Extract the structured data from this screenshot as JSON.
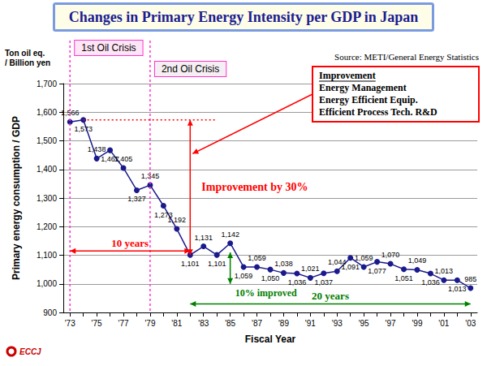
{
  "chart_data": {
    "type": "line",
    "title": "Changes in Primary Energy Intensity per GDP in Japan",
    "source": "Source: METI/General Energy Statistics",
    "x_label": "Fiscal Year",
    "y_label": "Primary energy consumption / GDP",
    "y_unit": [
      "Ton oil eq.",
      "/ Billion yen"
    ],
    "categories": [
      "'73",
      null,
      "'75",
      null,
      "'77",
      null,
      "'79",
      null,
      "'81",
      null,
      "'83",
      null,
      "'85",
      null,
      "'87",
      null,
      "'89",
      null,
      "'91",
      null,
      "'93",
      null,
      "'95",
      null,
      "'97",
      null,
      "'99",
      null,
      "'01",
      null,
      "'03"
    ],
    "values": [
      1566,
      1573,
      1438,
      1467,
      1405,
      1327,
      1345,
      1273,
      1192,
      1101,
      1131,
      1101,
      1142,
      1059,
      1059,
      1050,
      1038,
      1036,
      1021,
      1037,
      1044,
      1091,
      1059,
      1077,
      1070,
      1051,
      1049,
      1036,
      1013,
      1013,
      985
    ],
    "value_labels": [
      "1,566",
      "1,573",
      "1,438",
      "1,467",
      "1,405",
      "1,327",
      "1,345",
      "1,273",
      "1,192",
      "1,101",
      "1,131",
      "1,101",
      "1,142",
      "1,059",
      "1,059",
      "1,050",
      "1,038",
      "1,036",
      "1,021",
      "1,037",
      "1,044",
      "1,091",
      "1,059",
      "1,077",
      "1,070",
      "1,051",
      "1,049",
      "1,036",
      "1,013",
      "1,013",
      "985"
    ],
    "data_labels": true,
    "color": "#1a1a8c",
    "marker": "circle",
    "ylim": [
      900,
      1700
    ],
    "yticks": [
      900,
      {
        "value": 1000,
        "label": "1,000"
      },
      {
        "value": 1100,
        "label": "1,100"
      },
      {
        "value": 1200,
        "label": "1,200"
      },
      {
        "value": 1300,
        "label": "1,300"
      },
      {
        "value": 1400,
        "label": "1,400"
      },
      {
        "value": 1500,
        "label": "1,500"
      },
      {
        "value": 1600,
        "label": "1,600"
      },
      {
        "value": 1700,
        "label": "1,700"
      }
    ],
    "grid": true,
    "oil_crises": [
      {
        "text": "1st Oil Crisis",
        "x": 0,
        "color": "#ff33cc"
      },
      {
        "text": "2nd Oil Crisis",
        "x": 6,
        "color": "#ff33cc"
      }
    ],
    "improvement": {
      "text": "Improvement by 30%",
      "x": 9,
      "y": [
        1573,
        1101
      ],
      "line_x": [
        1,
        11
      ],
      "color": "#ff0000"
    },
    "improvement_box": {
      "title": "Improvement",
      "lines": [
        "Energy Management",
        "Energy Efficient Equip.",
        "Efficient Process Tech. R&D"
      ],
      "color": "#ff0000"
    },
    "spans": [
      {
        "text": "10 years",
        "x": [
          0,
          9
        ],
        "y": 1115,
        "color": "#ff0000"
      },
      {
        "text": "20 years",
        "x": [
          9,
          30
        ],
        "y": 930,
        "color": "#008000"
      }
    ],
    "ten_percent": {
      "text": "10% improved",
      "x": 12,
      "y": [
        1110,
        1000
      ],
      "color": "#008000"
    },
    "logo": "ECCJ"
  }
}
